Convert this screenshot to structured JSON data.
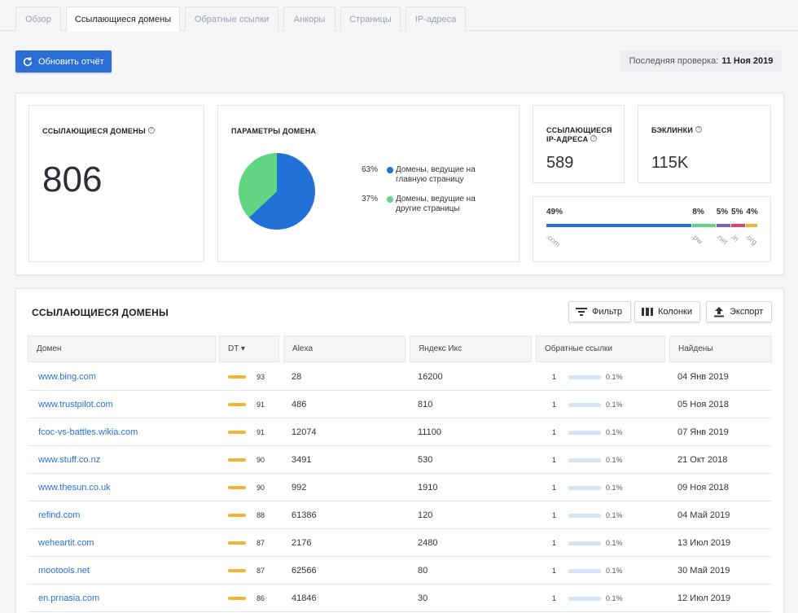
{
  "tabs": [
    "Обзор",
    "Ссылающиеся домены",
    "Обратные ссылки",
    "Анкоры",
    "Страницы",
    "IP-адреса"
  ],
  "toolbar": {
    "refresh_label": "Обновить отчёт",
    "last_check_label": "Последняя проверка:",
    "last_check_date": "11 Ноя 2019"
  },
  "summary": {
    "ref_domains_title": "ССЫЛАЮЩИЕСЯ ДОМЕНЫ",
    "ref_domains_value": "806",
    "params_title": "ПАРАМЕТРЫ ДОМЕНА",
    "legend": [
      {
        "pct": "63%",
        "label": "Домены, ведущие на главную страницу",
        "color": "#2271d6"
      },
      {
        "pct": "37%",
        "label": "Домены, ведущие на другие страницы",
        "color": "#62d583"
      }
    ],
    "ref_ips_title": "ССЫЛАЮЩИЕСЯ IP-АДРЕСА",
    "ref_ips_value": "589",
    "backlinks_title": "БЭКЛИНКИ",
    "backlinks_value": "115K",
    "tlds": [
      {
        "pct": "49%",
        "name": ".com",
        "color": "#2271d6"
      },
      {
        "pct": "8%",
        "name": ".pw",
        "color": "#62d583"
      },
      {
        "pct": "5%",
        "name": ".net",
        "color": "#7b5cc7"
      },
      {
        "pct": "5%",
        "name": ".in",
        "color": "#e23d6b"
      },
      {
        "pct": "4%",
        "name": ".org",
        "color": "#f5b335"
      }
    ]
  },
  "chart_data": {
    "type": "pie",
    "title": "ПАРАМЕТРЫ ДОМЕНА",
    "categories": [
      "Домены, ведущие на главную страницу",
      "Домены, ведущие на другие страницы"
    ],
    "values": [
      63,
      37
    ],
    "colors": [
      "#2271d6",
      "#62d583"
    ]
  },
  "table": {
    "title": "ССЫЛАЮЩИЕСЯ ДОМЕНЫ",
    "filter_label": "Фильтр",
    "columns_label": "Колонки",
    "export_label": "Экспорт",
    "headers": [
      "Домен",
      "DT ▾",
      "Alexa",
      "Яндекс Икс",
      "Обратные ссылки",
      "Найдены"
    ],
    "rows": [
      {
        "domain": "www.bing.com",
        "dt": "93",
        "alexa": "28",
        "yandex": "16200",
        "backlinks": "1",
        "bl_pct": "0.1%",
        "found": "04 Янв 2019"
      },
      {
        "domain": "www.trustpilot.com",
        "dt": "91",
        "alexa": "486",
        "yandex": "810",
        "backlinks": "1",
        "bl_pct": "0.1%",
        "found": "05 Ноя 2018"
      },
      {
        "domain": "fcoc-vs-battles.wikia.com",
        "dt": "91",
        "alexa": "12074",
        "yandex": "11100",
        "backlinks": "1",
        "bl_pct": "0.1%",
        "found": "07 Янв 2019"
      },
      {
        "domain": "www.stuff.co.nz",
        "dt": "90",
        "alexa": "3491",
        "yandex": "530",
        "backlinks": "1",
        "bl_pct": "0.1%",
        "found": "21 Окт 2018"
      },
      {
        "domain": "www.thesun.co.uk",
        "dt": "90",
        "alexa": "992",
        "yandex": "1910",
        "backlinks": "1",
        "bl_pct": "0.1%",
        "found": "09 Ноя 2018"
      },
      {
        "domain": "refind.com",
        "dt": "88",
        "alexa": "61386",
        "yandex": "120",
        "backlinks": "1",
        "bl_pct": "0.1%",
        "found": "04 Май 2019"
      },
      {
        "domain": "weheartit.com",
        "dt": "87",
        "alexa": "2176",
        "yandex": "2480",
        "backlinks": "1",
        "bl_pct": "0.1%",
        "found": "13 Июл 2019"
      },
      {
        "domain": "mootools.net",
        "dt": "87",
        "alexa": "62566",
        "yandex": "80",
        "backlinks": "1",
        "bl_pct": "0.1%",
        "found": "30 Май 2019"
      },
      {
        "domain": "en.prnasia.com",
        "dt": "86",
        "alexa": "41846",
        "yandex": "30",
        "backlinks": "1",
        "bl_pct": "0.1%",
        "found": "12 Июл 2019"
      }
    ]
  }
}
